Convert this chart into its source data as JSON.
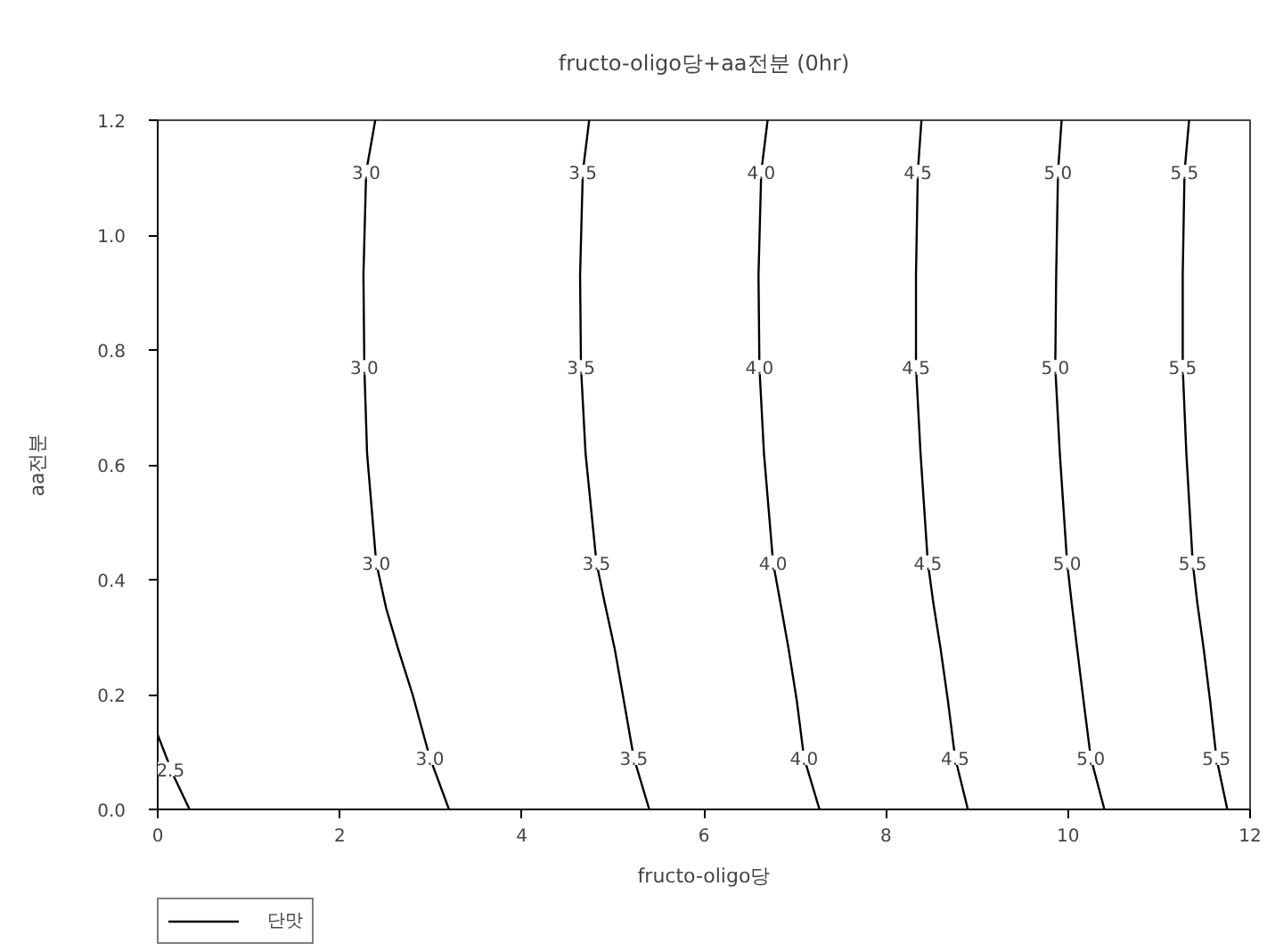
{
  "chart_data": {
    "type": "line",
    "title": "fructo-oligo당+aa전분 (0hr)",
    "xlabel": "fructo-oligo당",
    "ylabel": "aa전분",
    "xlim": [
      0,
      12
    ],
    "ylim": [
      0,
      1.2
    ],
    "xticks": [
      0,
      2,
      4,
      6,
      8,
      10,
      12
    ],
    "yticks": [
      {
        "value": 0,
        "label": "0.0"
      },
      0.2,
      0.4,
      0.6,
      0.8,
      {
        "value": 1,
        "label": "1.0"
      },
      1.2
    ],
    "legend": "bottom left",
    "line_style": "solid",
    "series": [
      {
        "name": "단맛",
        "color": "#000000",
        "x": [
          0,
          0.17,
          0.35
        ],
        "values": [
          0.13,
          0.06,
          0
        ]
      },
      {
        "color": "#000000",
        "x": [
          2.39,
          2.29,
          2.26,
          2.27,
          2.3,
          2.4,
          2.51,
          2.64,
          2.8,
          2.99,
          3.2
        ],
        "values": [
          1.2,
          1.11,
          0.93,
          0.77,
          0.62,
          0.43,
          0.35,
          0.28,
          0.2,
          0.09,
          0
        ]
      },
      {
        "color": "#000000",
        "x": [
          4.74,
          4.67,
          4.64,
          4.65,
          4.7,
          4.82,
          4.91,
          5.02,
          5.12,
          5.23,
          5.4
        ],
        "values": [
          1.2,
          1.11,
          0.93,
          0.77,
          0.62,
          0.43,
          0.36,
          0.28,
          0.19,
          0.09,
          0
        ]
      },
      {
        "color": "#000000",
        "x": [
          6.7,
          6.63,
          6.6,
          6.61,
          6.66,
          6.76,
          6.84,
          6.93,
          7.02,
          7.1,
          7.27
        ],
        "values": [
          1.2,
          1.11,
          0.93,
          0.77,
          0.62,
          0.43,
          0.36,
          0.28,
          0.19,
          0.09,
          0
        ]
      },
      {
        "color": "#000000",
        "x": [
          8.39,
          8.35,
          8.33,
          8.33,
          8.38,
          8.46,
          8.52,
          8.6,
          8.68,
          8.76,
          8.9
        ],
        "values": [
          1.2,
          1.11,
          0.93,
          0.77,
          0.62,
          0.43,
          0.36,
          0.28,
          0.19,
          0.09,
          0
        ]
      },
      {
        "color": "#000000",
        "x": [
          9.93,
          9.89,
          9.87,
          9.86,
          9.91,
          9.99,
          10.04,
          10.1,
          10.17,
          10.25,
          10.4
        ],
        "values": [
          1.2,
          1.11,
          0.93,
          0.77,
          0.62,
          0.43,
          0.36,
          0.28,
          0.19,
          0.09,
          0
        ]
      },
      {
        "color": "#000000",
        "x": [
          11.33,
          11.28,
          11.26,
          11.26,
          11.3,
          11.37,
          11.42,
          11.49,
          11.56,
          11.63,
          11.75
        ],
        "values": [
          1.2,
          1.11,
          0.93,
          0.77,
          0.62,
          0.43,
          0.36,
          0.28,
          0.19,
          0.09,
          0
        ]
      }
    ],
    "annotations": [
      {
        "text": "2.5",
        "x": 0.14,
        "y": 0.07
      },
      {
        "text": "3.0",
        "x": 2.29,
        "y": 1.11
      },
      {
        "text": "3.0",
        "x": 2.27,
        "y": 0.77
      },
      {
        "text": "3.0",
        "x": 2.4,
        "y": 0.43
      },
      {
        "text": "3.0",
        "x": 2.99,
        "y": 0.09
      },
      {
        "text": "3.5",
        "x": 4.67,
        "y": 1.11
      },
      {
        "text": "3.5",
        "x": 4.65,
        "y": 0.77
      },
      {
        "text": "3.5",
        "x": 4.82,
        "y": 0.43
      },
      {
        "text": "3.5",
        "x": 5.23,
        "y": 0.09
      },
      {
        "text": "4.0",
        "x": 6.63,
        "y": 1.11
      },
      {
        "text": "4.0",
        "x": 6.61,
        "y": 0.77
      },
      {
        "text": "4.0",
        "x": 6.76,
        "y": 0.43
      },
      {
        "text": "4.0",
        "x": 7.1,
        "y": 0.09
      },
      {
        "text": "4.5",
        "x": 8.35,
        "y": 1.11
      },
      {
        "text": "4.5",
        "x": 8.33,
        "y": 0.77
      },
      {
        "text": "4.5",
        "x": 8.46,
        "y": 0.43
      },
      {
        "text": "4.5",
        "x": 8.76,
        "y": 0.09
      },
      {
        "text": "5.0",
        "x": 9.89,
        "y": 1.11
      },
      {
        "text": "5.0",
        "x": 9.86,
        "y": 0.77
      },
      {
        "text": "5.0",
        "x": 9.99,
        "y": 0.43
      },
      {
        "text": "5.0",
        "x": 10.25,
        "y": 0.09
      },
      {
        "text": "5.5",
        "x": 11.28,
        "y": 1.11
      },
      {
        "text": "5.5",
        "x": 11.26,
        "y": 0.77
      },
      {
        "text": "5.5",
        "x": 11.37,
        "y": 0.43
      },
      {
        "text": "5.5",
        "x": 11.63,
        "y": 0.09
      }
    ]
  }
}
